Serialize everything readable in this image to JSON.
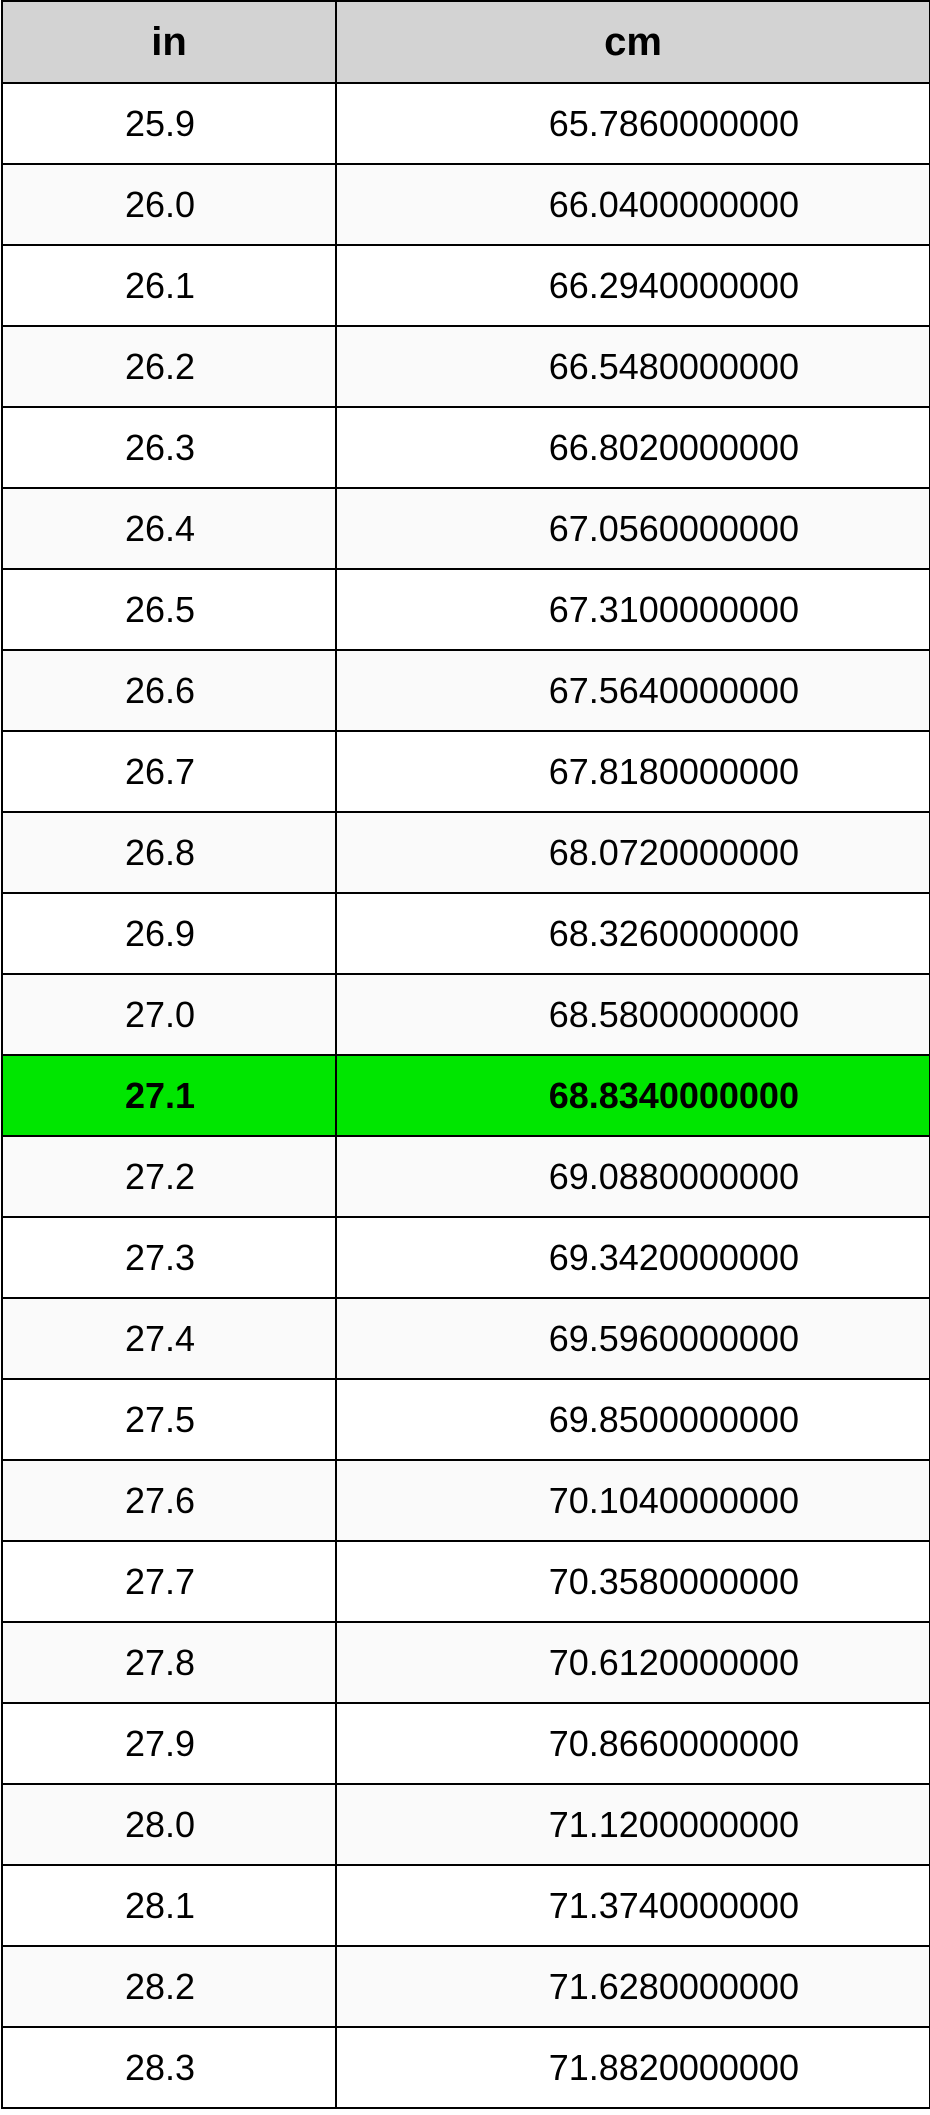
{
  "table": {
    "columns": [
      "in",
      "cm"
    ],
    "header_bg": "#d3d3d3",
    "header_fontsize": 40,
    "cell_fontsize": 36,
    "border_color": "#000000",
    "row_alt_bg": "#fafafa",
    "row_bg": "#ffffff",
    "highlight_bg": "#00e600",
    "highlight_index": 12,
    "col_widths": [
      0.36,
      0.64
    ],
    "rows": [
      {
        "in": "25.9",
        "cm": "65.7860000000"
      },
      {
        "in": "26.0",
        "cm": "66.0400000000"
      },
      {
        "in": "26.1",
        "cm": "66.2940000000"
      },
      {
        "in": "26.2",
        "cm": "66.5480000000"
      },
      {
        "in": "26.3",
        "cm": "66.8020000000"
      },
      {
        "in": "26.4",
        "cm": "67.0560000000"
      },
      {
        "in": "26.5",
        "cm": "67.3100000000"
      },
      {
        "in": "26.6",
        "cm": "67.5640000000"
      },
      {
        "in": "26.7",
        "cm": "67.8180000000"
      },
      {
        "in": "26.8",
        "cm": "68.0720000000"
      },
      {
        "in": "26.9",
        "cm": "68.3260000000"
      },
      {
        "in": "27.0",
        "cm": "68.5800000000"
      },
      {
        "in": "27.1",
        "cm": "68.8340000000"
      },
      {
        "in": "27.2",
        "cm": "69.0880000000"
      },
      {
        "in": "27.3",
        "cm": "69.3420000000"
      },
      {
        "in": "27.4",
        "cm": "69.5960000000"
      },
      {
        "in": "27.5",
        "cm": "69.8500000000"
      },
      {
        "in": "27.6",
        "cm": "70.1040000000"
      },
      {
        "in": "27.7",
        "cm": "70.3580000000"
      },
      {
        "in": "27.8",
        "cm": "70.6120000000"
      },
      {
        "in": "27.9",
        "cm": "70.8660000000"
      },
      {
        "in": "28.0",
        "cm": "71.1200000000"
      },
      {
        "in": "28.1",
        "cm": "71.3740000000"
      },
      {
        "in": "28.2",
        "cm": "71.6280000000"
      },
      {
        "in": "28.3",
        "cm": "71.8820000000"
      }
    ]
  }
}
